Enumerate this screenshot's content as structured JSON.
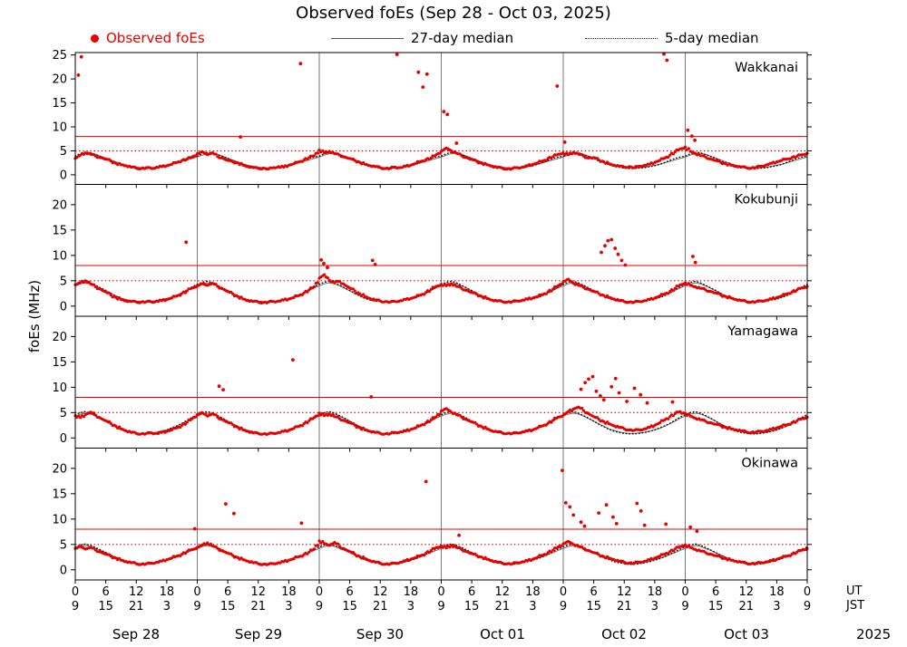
{
  "legend": {
    "observed": "Observed foEs",
    "median27": "27-day median",
    "median5": "5-day median"
  },
  "labels": {
    "ut": "UT",
    "jst": "JST",
    "year": "2025",
    "ylabel": "foEs (MHz)"
  },
  "colors": {
    "observed": "#e60000",
    "red_line": "#dd0000",
    "median27": "#666666",
    "median5": "#1a1a1a",
    "separator": "#7a7a7a",
    "frame": "#000000"
  },
  "x_axis": {
    "days": [
      "Sep 28",
      "Sep 29",
      "Sep 30",
      "Oct 01",
      "Oct 02",
      "Oct 03"
    ],
    "ut_ticks": [
      0,
      6,
      12,
      18
    ],
    "jst_ticks": [
      9,
      15,
      21,
      3
    ],
    "hours_total": 144
  },
  "chart_data": {
    "type": "scatter",
    "title": "Observed foEs (Sep 28 - Oct 03, 2025)",
    "ylabel": "foEs (MHz)",
    "x_unit": "hours since Sep 28 00:00 UT (hourly samples)",
    "red_lines": {
      "solid_mhz": 8.0,
      "dotted_mhz": 5.0
    },
    "stations": [
      {
        "name": "Wakkanai",
        "ylim": [
          -2,
          25.5
        ],
        "yticks": [
          0,
          5,
          10,
          15,
          20,
          25
        ],
        "observed_hourly": [
          3.4,
          4.1,
          4.6,
          4.3,
          3.9,
          3.6,
          3.3,
          2.9,
          2.4,
          2.1,
          1.9,
          1.6,
          1.4,
          1.3,
          1.5,
          1.3,
          1.6,
          1.7,
          1.9,
          2.2,
          2.6,
          3.0,
          3.3,
          3.7,
          4.4,
          4.8,
          4.2,
          4.6,
          3.8,
          3.5,
          3.0,
          2.7,
          2.5,
          2.0,
          1.7,
          1.5,
          1.3,
          1.4,
          1.2,
          1.5,
          1.7,
          1.6,
          2.0,
          2.3,
          2.7,
          3.1,
          3.6,
          4.0,
          5.2,
          4.6,
          4.9,
          4.4,
          4.1,
          3.7,
          3.4,
          3.0,
          2.6,
          2.2,
          1.9,
          1.7,
          1.5,
          1.3,
          1.4,
          1.6,
          1.5,
          1.8,
          2.0,
          2.4,
          2.8,
          3.2,
          3.5,
          4.2,
          4.9,
          5.6,
          5.0,
          4.5,
          4.0,
          3.6,
          3.2,
          2.8,
          2.4,
          2.1,
          1.8,
          1.5,
          1.4,
          1.2,
          1.3,
          1.5,
          1.6,
          1.9,
          2.2,
          2.5,
          2.9,
          3.4,
          3.8,
          4.3,
          4.6,
          4.2,
          4.7,
          4.3,
          3.9,
          3.5,
          3.6,
          3.1,
          2.7,
          2.3,
          2.0,
          1.8,
          1.6,
          1.7,
          1.5,
          1.8,
          2.0,
          2.2,
          2.6,
          3.0,
          3.5,
          4.1,
          4.8,
          5.4,
          5.8,
          4.9,
          4.4,
          4.0,
          3.7,
          3.3,
          3.0,
          2.6,
          2.3,
          2.0,
          1.8,
          1.6,
          1.5,
          1.4,
          1.6,
          1.8,
          2.1,
          2.4,
          2.7,
          3.0,
          3.3,
          3.6,
          3.9,
          4.2,
          4.5
        ],
        "observed_extra": [
          [
            0.6,
            20.8
          ],
          [
            1.2,
            24.6
          ],
          [
            32.5,
            7.9
          ],
          [
            44.3,
            23.2
          ],
          [
            63.3,
            25.1
          ],
          [
            67.5,
            21.4
          ],
          [
            68.4,
            18.3
          ],
          [
            69.2,
            21.0
          ],
          [
            72.5,
            13.2
          ],
          [
            73.2,
            12.6
          ],
          [
            75.0,
            6.6
          ],
          [
            94.8,
            18.5
          ],
          [
            96.3,
            6.8
          ],
          [
            115.8,
            25.2
          ],
          [
            116.4,
            23.9
          ],
          [
            120.5,
            9.3
          ],
          [
            121.3,
            8.1
          ],
          [
            121.9,
            7.2
          ]
        ],
        "median27_diurnal": [
          3.7,
          4.1,
          4.4,
          4.5,
          4.3,
          3.9,
          3.5,
          3.1,
          2.7,
          2.3,
          2.0,
          1.8,
          1.6,
          1.5,
          1.4,
          1.5,
          1.6,
          1.8,
          2.0,
          2.2,
          2.5,
          2.8,
          3.1,
          3.4
        ],
        "median5_diurnal": [
          3.9,
          4.4,
          4.7,
          4.6,
          4.2,
          3.8,
          3.4,
          2.9,
          2.5,
          2.1,
          1.8,
          1.6,
          1.4,
          1.3,
          1.3,
          1.4,
          1.5,
          1.7,
          1.9,
          2.2,
          2.6,
          3.0,
          3.4,
          3.7
        ]
      },
      {
        "name": "Kokubunji",
        "ylim": [
          -2,
          24
        ],
        "yticks": [
          0,
          5,
          10,
          15,
          20
        ],
        "observed_hourly": [
          4.2,
          4.6,
          5.0,
          4.4,
          3.8,
          3.3,
          2.8,
          2.2,
          1.7,
          1.3,
          1.0,
          0.9,
          0.8,
          0.8,
          0.9,
          0.8,
          1.0,
          1.1,
          1.3,
          1.6,
          2.0,
          2.5,
          3.0,
          3.6,
          4.0,
          4.4,
          4.1,
          4.5,
          3.9,
          3.4,
          2.9,
          2.4,
          1.9,
          1.4,
          1.1,
          0.9,
          0.8,
          0.7,
          0.8,
          0.9,
          1.0,
          1.2,
          1.4,
          1.7,
          2.1,
          2.6,
          3.2,
          3.8,
          5.5,
          6.2,
          5.1,
          4.6,
          4.9,
          4.2,
          3.6,
          3.0,
          2.4,
          1.9,
          1.5,
          1.2,
          1.0,
          0.9,
          0.8,
          0.9,
          1.1,
          1.3,
          1.5,
          1.8,
          2.2,
          2.7,
          3.3,
          3.9,
          4.3,
          4.0,
          4.4,
          3.9,
          3.5,
          3.1,
          2.7,
          2.3,
          1.9,
          1.5,
          1.2,
          1.0,
          0.9,
          0.8,
          0.9,
          1.0,
          1.2,
          1.4,
          1.6,
          1.9,
          2.3,
          2.8,
          3.4,
          4.0,
          4.8,
          5.3,
          4.5,
          4.1,
          3.7,
          3.3,
          2.9,
          2.5,
          2.1,
          1.7,
          1.4,
          1.1,
          0.9,
          0.8,
          0.8,
          0.9,
          1.1,
          1.3,
          1.6,
          2.0,
          2.4,
          2.9,
          3.5,
          4.2,
          4.6,
          4.1,
          3.8,
          3.5,
          3.2,
          2.9,
          2.6,
          2.2,
          1.9,
          1.6,
          1.3,
          1.1,
          0.9,
          0.8,
          0.9,
          1.0,
          1.2,
          1.4,
          1.7,
          2.0,
          2.4,
          2.8,
          3.2,
          3.6,
          3.9
        ],
        "observed_extra": [
          [
            21.8,
            12.6
          ],
          [
            48.4,
            9.1
          ],
          [
            48.9,
            8.4
          ],
          [
            49.6,
            7.6
          ],
          [
            58.5,
            9.0
          ],
          [
            59.0,
            8.2
          ],
          [
            103.5,
            10.6
          ],
          [
            104.2,
            11.9
          ],
          [
            104.8,
            12.9
          ],
          [
            105.5,
            13.1
          ],
          [
            106.2,
            11.4
          ],
          [
            106.8,
            10.2
          ],
          [
            107.5,
            9.0
          ],
          [
            108.2,
            8.1
          ],
          [
            121.5,
            9.8
          ],
          [
            122.0,
            8.6
          ]
        ],
        "median27_diurnal": [
          4.0,
          4.4,
          4.6,
          4.4,
          4.0,
          3.5,
          3.0,
          2.5,
          2.0,
          1.6,
          1.3,
          1.1,
          1.0,
          0.9,
          0.9,
          1.0,
          1.1,
          1.3,
          1.5,
          1.8,
          2.2,
          2.6,
          3.1,
          3.6
        ],
        "median5_diurnal": [
          4.3,
          4.7,
          4.9,
          4.6,
          4.1,
          3.6,
          3.1,
          2.5,
          2.0,
          1.5,
          1.2,
          1.0,
          0.9,
          0.8,
          0.8,
          0.9,
          1.0,
          1.2,
          1.4,
          1.7,
          2.1,
          2.6,
          3.2,
          3.8
        ]
      },
      {
        "name": "Yamagawa",
        "ylim": [
          -2,
          24
        ],
        "yticks": [
          0,
          5,
          10,
          15,
          20
        ],
        "observed_hourly": [
          4.4,
          4.0,
          4.6,
          5.1,
          4.5,
          3.9,
          3.4,
          2.9,
          2.3,
          1.8,
          1.4,
          1.1,
          0.9,
          0.8,
          0.9,
          1.0,
          0.9,
          1.1,
          1.3,
          1.6,
          2.0,
          2.5,
          3.1,
          3.8,
          4.6,
          5.0,
          4.3,
          4.8,
          4.1,
          3.6,
          3.1,
          2.6,
          2.1,
          1.6,
          1.3,
          1.0,
          0.9,
          0.8,
          0.8,
          0.9,
          1.1,
          1.3,
          1.5,
          1.9,
          2.3,
          2.8,
          3.4,
          4.0,
          4.9,
          4.4,
          4.7,
          4.2,
          3.8,
          3.4,
          3.0,
          2.5,
          2.0,
          1.6,
          1.3,
          1.1,
          0.9,
          0.8,
          0.9,
          1.1,
          1.2,
          1.4,
          1.7,
          2.0,
          2.5,
          3.0,
          3.6,
          4.2,
          5.3,
          5.8,
          5.1,
          4.6,
          4.1,
          3.6,
          3.2,
          2.7,
          2.2,
          1.8,
          1.4,
          1.2,
          1.0,
          0.9,
          0.9,
          1.0,
          1.2,
          1.4,
          1.6,
          2.0,
          2.4,
          2.9,
          3.5,
          4.1,
          4.5,
          5.2,
          5.7,
          6.1,
          5.4,
          4.8,
          4.2,
          3.7,
          3.2,
          2.8,
          2.4,
          2.1,
          1.8,
          1.6,
          1.5,
          1.6,
          1.8,
          2.1,
          2.5,
          3.0,
          3.6,
          4.2,
          4.8,
          5.2,
          4.8,
          4.3,
          3.9,
          3.6,
          3.3,
          3.0,
          2.7,
          2.4,
          2.1,
          1.8,
          1.6,
          1.4,
          1.2,
          1.1,
          1.2,
          1.3,
          1.5,
          1.7,
          2.0,
          2.3,
          2.6,
          3.0,
          3.4,
          3.8,
          4.1
        ],
        "observed_extra": [
          [
            28.3,
            10.2
          ],
          [
            29.1,
            9.5
          ],
          [
            42.8,
            15.4
          ],
          [
            58.2,
            8.1
          ],
          [
            99.5,
            9.6
          ],
          [
            100.3,
            10.9
          ],
          [
            101.0,
            11.6
          ],
          [
            101.8,
            12.1
          ],
          [
            102.5,
            9.2
          ],
          [
            103.3,
            8.3
          ],
          [
            104.0,
            7.5
          ],
          [
            105.5,
            10.1
          ],
          [
            106.3,
            11.7
          ],
          [
            107.0,
            8.9
          ],
          [
            108.5,
            7.2
          ],
          [
            110.0,
            9.8
          ],
          [
            111.2,
            8.5
          ],
          [
            112.5,
            6.9
          ],
          [
            117.5,
            7.1
          ]
        ],
        "median27_diurnal": [
          4.3,
          4.7,
          4.9,
          4.7,
          4.3,
          3.8,
          3.3,
          2.8,
          2.3,
          1.8,
          1.5,
          1.2,
          1.0,
          0.9,
          0.9,
          1.0,
          1.1,
          1.3,
          1.6,
          1.9,
          2.3,
          2.8,
          3.3,
          3.9
        ],
        "median5_diurnal": [
          4.6,
          5.0,
          5.2,
          4.9,
          4.4,
          3.9,
          3.3,
          2.7,
          2.2,
          1.7,
          1.3,
          1.1,
          0.9,
          0.8,
          0.8,
          0.9,
          1.1,
          1.3,
          1.6,
          2.0,
          2.4,
          2.9,
          3.5,
          4.1
        ]
      },
      {
        "name": "Okinawa",
        "ylim": [
          -2,
          24
        ],
        "yticks": [
          0,
          5,
          10,
          15,
          20
        ],
        "observed_hourly": [
          4.2,
          4.6,
          4.1,
          4.4,
          3.9,
          3.5,
          3.1,
          2.7,
          2.3,
          1.9,
          1.6,
          1.4,
          1.2,
          1.1,
          1.2,
          1.3,
          1.5,
          1.7,
          2.0,
          2.3,
          2.7,
          3.1,
          3.6,
          4.0,
          4.4,
          4.9,
          5.3,
          4.7,
          4.2,
          3.7,
          3.3,
          2.8,
          2.4,
          2.0,
          1.7,
          1.4,
          1.2,
          1.1,
          1.1,
          1.2,
          1.4,
          1.6,
          1.9,
          2.2,
          2.6,
          3.0,
          3.5,
          4.1,
          5.7,
          5.2,
          4.8,
          5.4,
          4.6,
          4.1,
          3.6,
          3.1,
          2.6,
          2.2,
          1.8,
          1.5,
          1.3,
          1.1,
          1.2,
          1.3,
          1.5,
          1.8,
          2.1,
          2.4,
          2.8,
          3.3,
          3.8,
          4.4,
          4.7,
          4.3,
          4.8,
          4.4,
          4.0,
          3.6,
          3.2,
          2.8,
          2.5,
          2.1,
          1.8,
          1.5,
          1.3,
          1.2,
          1.2,
          1.4,
          1.6,
          1.8,
          2.1,
          2.5,
          2.9,
          3.4,
          3.9,
          4.5,
          5.1,
          5.6,
          5.0,
          4.6,
          4.2,
          3.8,
          3.4,
          3.0,
          2.6,
          2.3,
          2.0,
          1.7,
          1.5,
          1.3,
          1.4,
          1.5,
          1.7,
          2.0,
          2.3,
          2.7,
          3.1,
          3.6,
          4.1,
          4.6,
          4.9,
          4.4,
          4.0,
          3.7,
          3.4,
          3.1,
          2.8,
          2.5,
          2.2,
          1.9,
          1.7,
          1.5,
          1.3,
          1.2,
          1.3,
          1.4,
          1.6,
          1.8,
          2.1,
          2.4,
          2.7,
          3.1,
          3.5,
          3.9,
          4.2
        ],
        "observed_extra": [
          [
            23.5,
            8.1
          ],
          [
            29.6,
            13.0
          ],
          [
            31.2,
            11.1
          ],
          [
            44.5,
            9.2
          ],
          [
            69.0,
            17.4
          ],
          [
            75.5,
            6.8
          ],
          [
            95.8,
            19.6
          ],
          [
            96.5,
            13.2
          ],
          [
            97.3,
            12.4
          ],
          [
            98.0,
            10.8
          ],
          [
            99.5,
            9.4
          ],
          [
            100.2,
            8.6
          ],
          [
            103.0,
            11.2
          ],
          [
            104.5,
            12.8
          ],
          [
            105.8,
            10.4
          ],
          [
            106.5,
            9.1
          ],
          [
            110.5,
            13.1
          ],
          [
            111.3,
            11.6
          ],
          [
            112.0,
            8.8
          ],
          [
            116.2,
            9.0
          ],
          [
            121.0,
            8.4
          ],
          [
            122.3,
            7.6
          ]
        ],
        "median27_diurnal": [
          4.2,
          4.6,
          4.8,
          4.6,
          4.2,
          3.8,
          3.4,
          2.9,
          2.5,
          2.1,
          1.8,
          1.5,
          1.3,
          1.2,
          1.2,
          1.3,
          1.5,
          1.7,
          2.0,
          2.3,
          2.6,
          3.0,
          3.4,
          3.8
        ],
        "median5_diurnal": [
          4.5,
          4.9,
          5.1,
          4.8,
          4.4,
          3.9,
          3.4,
          2.9,
          2.4,
          2.0,
          1.6,
          1.4,
          1.2,
          1.1,
          1.1,
          1.2,
          1.4,
          1.6,
          1.9,
          2.2,
          2.6,
          3.1,
          3.6,
          4.1
        ]
      }
    ]
  }
}
